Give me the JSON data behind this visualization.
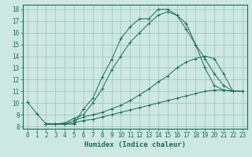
{
  "xlabel": "Humidex (Indice chaleur)",
  "ylabel": "",
  "xlim": [
    -0.5,
    23.5
  ],
  "ylim": [
    7.8,
    18.4
  ],
  "xticks": [
    0,
    1,
    2,
    3,
    4,
    5,
    6,
    7,
    8,
    9,
    10,
    11,
    12,
    13,
    14,
    15,
    16,
    17,
    18,
    19,
    20,
    21,
    22,
    23
  ],
  "yticks": [
    8,
    9,
    10,
    11,
    12,
    13,
    14,
    15,
    16,
    17,
    18
  ],
  "bg_color": "#cde8e0",
  "grid_color": "#9bbfb8",
  "line_color": "#1a6b5a",
  "lines": [
    {
      "x": [
        0,
        1,
        2,
        3,
        4,
        5,
        6,
        7,
        8,
        9,
        10,
        11,
        12,
        13,
        14,
        15,
        16,
        17,
        18,
        19,
        20,
        21,
        22,
        23
      ],
      "y": [
        10.1,
        9.1,
        8.2,
        8.2,
        8.2,
        8.2,
        9.5,
        10.4,
        12.2,
        13.7,
        15.5,
        16.5,
        17.2,
        17.2,
        18.0,
        18.0,
        17.5,
        16.3,
        15.0,
        13.0,
        11.5,
        11.1,
        11.0,
        11.0
      ]
    },
    {
      "x": [
        2,
        3,
        4,
        5,
        6,
        7,
        8,
        9,
        10,
        11,
        12,
        13,
        14,
        15,
        16,
        17,
        18,
        19,
        20,
        21,
        22,
        23
      ],
      "y": [
        8.2,
        8.2,
        8.3,
        8.7,
        9.0,
        10.0,
        11.2,
        12.8,
        14.0,
        15.2,
        16.0,
        16.8,
        17.5,
        17.8,
        17.5,
        16.8,
        15.0,
        13.8,
        12.5,
        11.5,
        11.0,
        11.0
      ]
    },
    {
      "x": [
        2,
        3,
        4,
        5,
        6,
        7,
        8,
        9,
        10,
        11,
        12,
        13,
        14,
        15,
        16,
        17,
        18,
        19,
        20,
        21,
        22,
        23
      ],
      "y": [
        8.2,
        8.2,
        8.2,
        8.5,
        8.8,
        9.0,
        9.2,
        9.5,
        9.8,
        10.2,
        10.7,
        11.2,
        11.8,
        12.3,
        13.0,
        13.5,
        13.8,
        14.0,
        13.8,
        12.5,
        11.0,
        11.0
      ]
    },
    {
      "x": [
        2,
        3,
        4,
        5,
        6,
        7,
        8,
        9,
        10,
        11,
        12,
        13,
        14,
        15,
        16,
        17,
        18,
        19,
        20,
        21,
        22,
        23
      ],
      "y": [
        8.2,
        8.2,
        8.2,
        8.3,
        8.5,
        8.6,
        8.8,
        9.0,
        9.2,
        9.4,
        9.6,
        9.8,
        10.0,
        10.2,
        10.4,
        10.6,
        10.8,
        11.0,
        11.1,
        11.1,
        11.0,
        11.0
      ]
    }
  ],
  "tick_fontsize": 5.5,
  "xlabel_fontsize": 6.5
}
